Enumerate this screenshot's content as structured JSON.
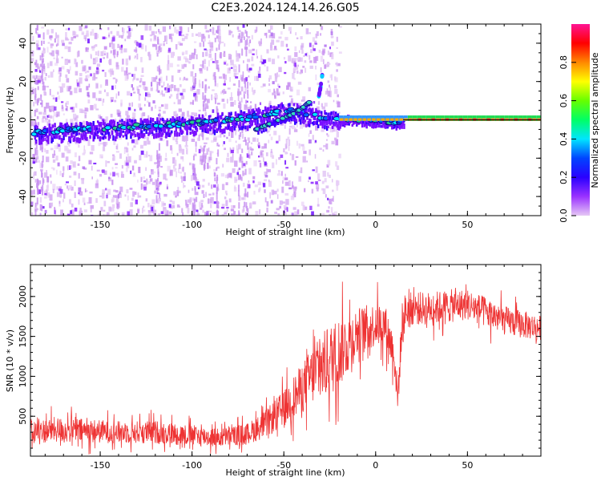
{
  "figure": {
    "title": "C2E3.2024.124.14.26.G05"
  },
  "chart_data": [
    {
      "type": "heatmap",
      "xlabel": "Height of straight line (km)",
      "ylabel": "Frequency (Hz)",
      "xlim": [
        -188,
        90
      ],
      "ylim": [
        -50,
        50
      ],
      "xticks": [
        -150,
        -100,
        -50,
        0,
        50
      ],
      "yticks": [
        -40,
        -20,
        0,
        20,
        40
      ],
      "colorbar": {
        "label": "Normalized spectral amplitude",
        "range": [
          0.0,
          1.0
        ],
        "ticks": [
          0.0,
          0.2,
          0.4,
          0.6,
          0.8
        ],
        "colors": [
          "#e6c8f5",
          "#9a32ff",
          "#2a00ff",
          "#0044ff",
          "#00e5ff",
          "#00ff66",
          "#66ff00",
          "#ffff00",
          "#ff8800",
          "#ff0000",
          "#ff1493"
        ]
      },
      "main_track": {
        "x": [
          -186,
          -170,
          -150,
          -130,
          -110,
          -90,
          -70,
          -60,
          -50,
          -40,
          -30,
          -20,
          -10,
          0,
          10,
          20,
          40,
          60,
          88
        ],
        "y": [
          -7,
          -5.5,
          -4.5,
          -3.5,
          -2.5,
          -1,
          1,
          3,
          5,
          4,
          1,
          0.5,
          0,
          0,
          -1,
          0,
          0,
          0,
          0
        ]
      },
      "second_track": {
        "x": [
          -65,
          -60,
          -55,
          -50,
          -45,
          -40,
          -35
        ],
        "y": [
          -5,
          -3,
          -1,
          1,
          3,
          6,
          10
        ]
      },
      "spur_track": {
        "x": [
          -31,
          -30,
          -29
        ],
        "y": [
          12,
          17,
          24
        ]
      },
      "reference_line": {
        "y": 0,
        "x_from": 15,
        "x_to": 90
      },
      "noise_bands": [
        {
          "x": [
            -188,
            -70
          ],
          "density": 1.0
        },
        {
          "x": [
            -70,
            -20
          ],
          "density": 0.35
        }
      ],
      "grid": false
    },
    {
      "type": "line",
      "xlabel": "Height of straight line (km)",
      "ylabel": "SNR (10 * v/v)",
      "xlim": [
        -188,
        90
      ],
      "ylim": [
        0,
        2400
      ],
      "xticks": [
        -150,
        -100,
        -50,
        0,
        50
      ],
      "yticks": [
        500,
        1000,
        1500,
        2000
      ],
      "series": [
        {
          "color": "#ee3333",
          "x": [
            -188,
            -175,
            -160,
            -140,
            -120,
            -100,
            -85,
            -70,
            -60,
            -50,
            -40,
            -35,
            -30,
            -25,
            -20,
            -10,
            0,
            5,
            10,
            12,
            14,
            16,
            20,
            30,
            40,
            50,
            60,
            70,
            80,
            90
          ],
          "y": [
            300,
            330,
            320,
            300,
            300,
            260,
            230,
            280,
            400,
            600,
            850,
            1000,
            1100,
            1200,
            1300,
            1550,
            1650,
            1650,
            1300,
            700,
            1500,
            1800,
            1850,
            1850,
            1880,
            1900,
            1800,
            1700,
            1650,
            1600
          ],
          "noise_amplitude": [
            200,
            230,
            220,
            200,
            210,
            190,
            170,
            190,
            250,
            330,
            450,
            520,
            600,
            650,
            650,
            450,
            400,
            380,
            350,
            300,
            350,
            350,
            300,
            300,
            300,
            280,
            280,
            260,
            250,
            230
          ]
        }
      ],
      "grid": false
    }
  ]
}
